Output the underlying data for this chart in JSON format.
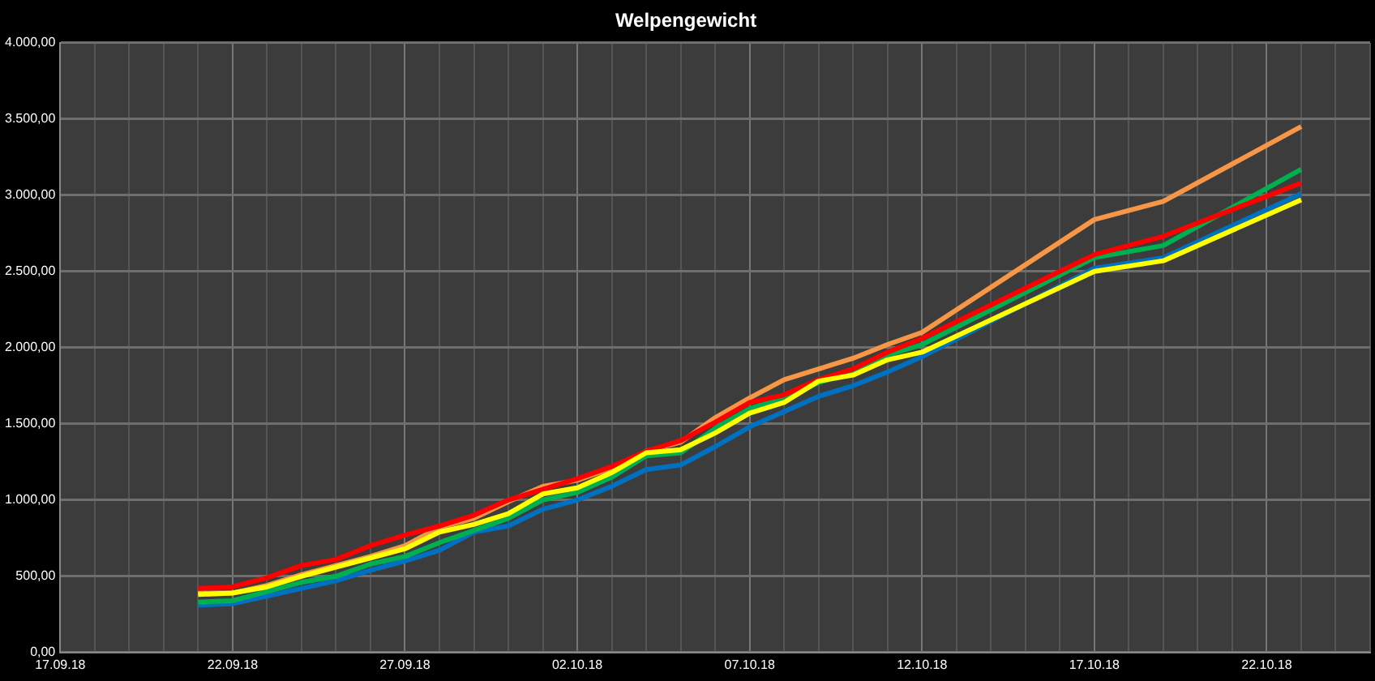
{
  "chart_data": {
    "type": "line",
    "title": "Welpengewicht",
    "x": [
      "--09-21",
      "--09-22",
      "--09-23",
      "--09-24",
      "--09-25",
      "--09-26",
      "--09-27",
      "--09-28",
      "--09-29",
      "--09-30",
      "--10-01",
      "--10-02",
      "--10-03",
      "--10-04",
      "--10-05",
      "--10-06",
      "--10-07",
      "--10-08",
      "--10-09",
      "--10-10",
      "--10-11",
      "--10-12",
      "--10-17",
      "--10-19",
      "--10-23"
    ],
    "series": [
      {
        "color": "#ffff00",
        "values": [
          380,
          390,
          430,
          500,
          560,
          620,
          680,
          790,
          840,
          910,
          1040,
          1080,
          1180,
          1310,
          1330,
          1440,
          1570,
          1640,
          1780,
          1820,
          1920,
          1970,
          2500,
          2570,
          2970
        ]
      },
      {
        "color": "#ff0000",
        "values": [
          420,
          430,
          490,
          570,
          610,
          700,
          770,
          830,
          900,
          1000,
          1070,
          1140,
          1220,
          1320,
          1390,
          1510,
          1640,
          1690,
          1790,
          1860,
          1970,
          2060,
          2610,
          2730,
          3080
        ]
      },
      {
        "color": "#00b050",
        "values": [
          330,
          340,
          400,
          460,
          500,
          580,
          630,
          720,
          800,
          880,
          1000,
          1050,
          1150,
          1290,
          1310,
          1470,
          1600,
          1670,
          1770,
          1840,
          1950,
          2020,
          2590,
          2670,
          3170
        ]
      },
      {
        "color": "#f79646",
        "values": [
          390,
          390,
          440,
          510,
          570,
          630,
          700,
          820,
          880,
          990,
          1090,
          1130,
          1210,
          1320,
          1380,
          1540,
          1670,
          1790,
          1860,
          1930,
          2020,
          2100,
          2840,
          2960,
          3450
        ]
      },
      {
        "color": "#0070c0",
        "values": [
          310,
          320,
          370,
          420,
          470,
          540,
          600,
          670,
          790,
          830,
          940,
          1000,
          1090,
          1200,
          1230,
          1350,
          1480,
          1580,
          1680,
          1750,
          1840,
          1940,
          2520,
          2590,
          3010
        ]
      }
    ],
    "xlim": [
      "--09-17",
      "--10-25"
    ],
    "xticks": [
      {
        "value": "--09-17",
        "label": "17.09.18"
      },
      {
        "value": "--09-18",
        "label": null
      },
      {
        "value": "--09-19",
        "label": null
      },
      {
        "value": "--09-20",
        "label": null
      },
      {
        "value": "--09-21",
        "label": null
      },
      {
        "value": "--09-22",
        "label": "22.09.18"
      },
      {
        "value": "--09-23",
        "label": null
      },
      {
        "value": "--09-24",
        "label": null
      },
      {
        "value": "--09-25",
        "label": null
      },
      {
        "value": "--09-26",
        "label": null
      },
      {
        "value": "--09-27",
        "label": "27.09.18"
      },
      {
        "value": "--09-28",
        "label": null
      },
      {
        "value": "--09-29",
        "label": null
      },
      {
        "value": "--09-30",
        "label": null
      },
      {
        "value": "--10-01",
        "label": null
      },
      {
        "value": "--10-02",
        "label": "02.10.18"
      },
      {
        "value": "--10-03",
        "label": null
      },
      {
        "value": "--10-04",
        "label": null
      },
      {
        "value": "--10-05",
        "label": null
      },
      {
        "value": "--10-06",
        "label": null
      },
      {
        "value": "--10-07",
        "label": "07.10.18"
      },
      {
        "value": "--10-08",
        "label": null
      },
      {
        "value": "--10-09",
        "label": null
      },
      {
        "value": "--10-10",
        "label": null
      },
      {
        "value": "--10-11",
        "label": null
      },
      {
        "value": "--10-12",
        "label": "12.10.18"
      },
      {
        "value": "--10-13",
        "label": null
      },
      {
        "value": "--10-14",
        "label": null
      },
      {
        "value": "--10-15",
        "label": null
      },
      {
        "value": "--10-16",
        "label": null
      },
      {
        "value": "--10-17",
        "label": "17.10.18"
      },
      {
        "value": "--10-18",
        "label": null
      },
      {
        "value": "--10-19",
        "label": null
      },
      {
        "value": "--10-20",
        "label": null
      },
      {
        "value": "--10-21",
        "label": null
      },
      {
        "value": "--10-22",
        "label": "22.10.18"
      },
      {
        "value": "--10-23",
        "label": null
      },
      {
        "value": "--10-24",
        "label": null
      },
      {
        "value": "--10-25",
        "label": null
      }
    ],
    "ylim": [
      0,
      4000
    ],
    "yticks": [
      {
        "value": 0,
        "label": "0,00"
      },
      {
        "value": 500,
        "label": "500,00"
      },
      {
        "value": 1000,
        "label": "1.000,00"
      },
      {
        "value": 1500,
        "label": "1.500,00"
      },
      {
        "value": 2000,
        "label": "2.000,00"
      },
      {
        "value": 2500,
        "label": "2.500,00"
      },
      {
        "value": 3000,
        "label": "3.000,00"
      },
      {
        "value": 3500,
        "label": "3.500,00"
      },
      {
        "value": 4000,
        "label": "4.000,00"
      }
    ],
    "grid": true,
    "legend": false,
    "marker": "none",
    "line_style": "solid"
  }
}
